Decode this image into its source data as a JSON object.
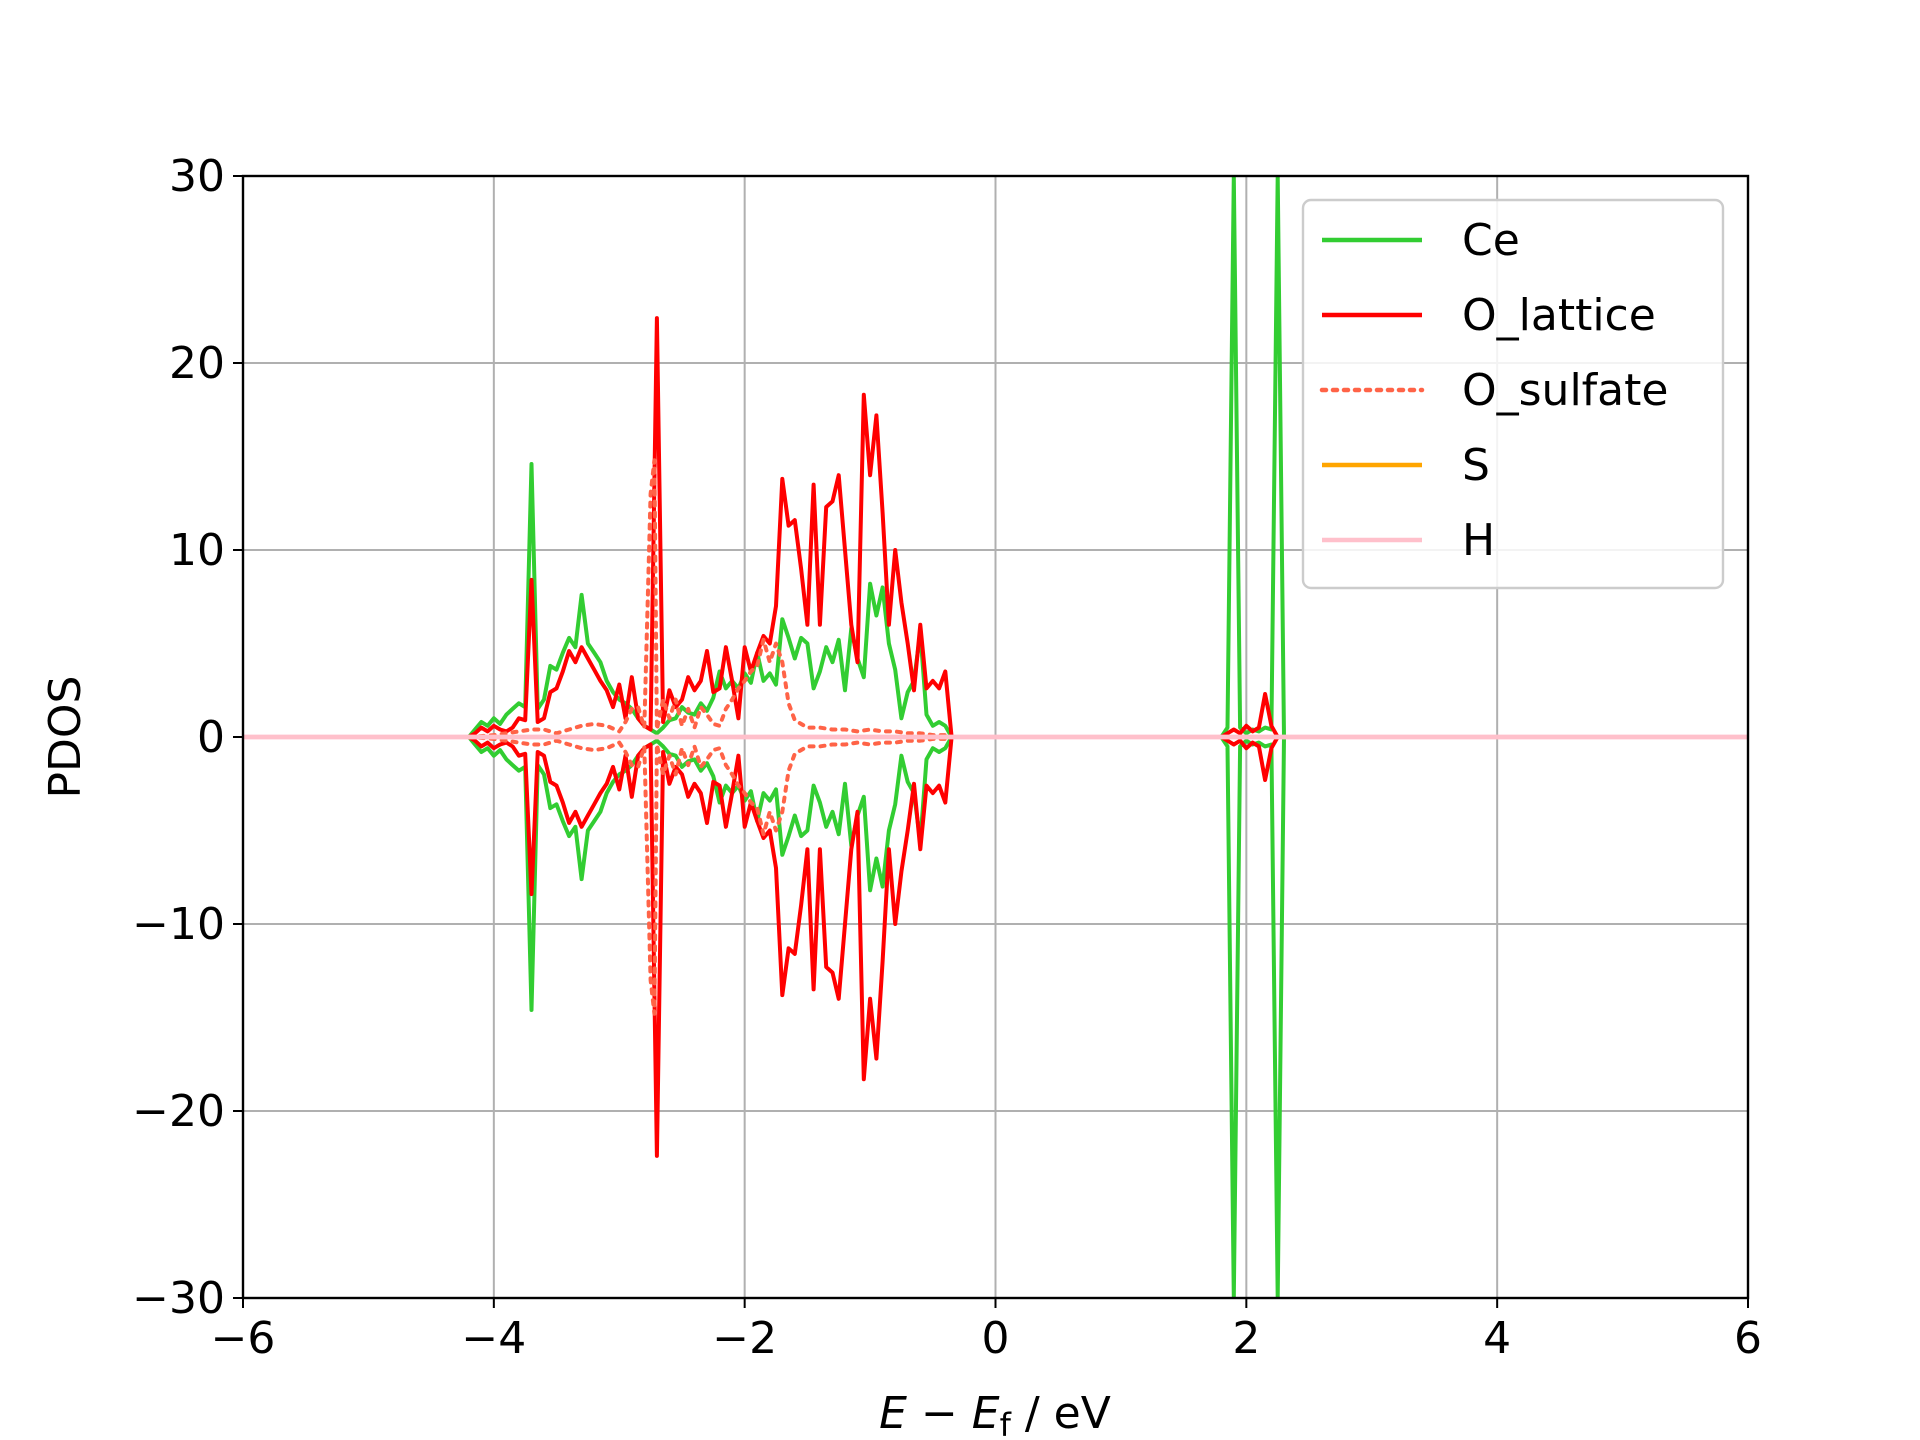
{
  "chart_data": {
    "type": "line",
    "title": "",
    "xlabel_parts": {
      "e": "E",
      "minus": " − ",
      "ef": "E",
      "sub": "f",
      "unit": " / eV"
    },
    "ylabel": "PDOS",
    "xlim": [
      -6,
      6
    ],
    "ylim": [
      -30,
      30
    ],
    "xticks": [
      -6,
      -4,
      -2,
      0,
      2,
      4,
      6
    ],
    "xtick_labels": [
      "−6",
      "−4",
      "−2",
      "0",
      "2",
      "4",
      "6"
    ],
    "yticks": [
      -30,
      -20,
      -10,
      0,
      10,
      20,
      30
    ],
    "ytick_labels": [
      "−30",
      "−20",
      "−10",
      "0",
      "10",
      "20",
      "30"
    ],
    "grid": true,
    "legend_position": "top-right",
    "spin_mirrored": true,
    "series": [
      {
        "name": "Ce",
        "color": "#32cd32",
        "dash": "solid",
        "x": [
          -4.2,
          -4.15,
          -4.1,
          -4.05,
          -4.0,
          -3.95,
          -3.9,
          -3.85,
          -3.8,
          -3.75,
          -3.7,
          -3.65,
          -3.6,
          -3.55,
          -3.5,
          -3.45,
          -3.4,
          -3.35,
          -3.3,
          -3.25,
          -3.2,
          -3.15,
          -3.1,
          -3.05,
          -3.0,
          -2.95,
          -2.9,
          -2.85,
          -2.8,
          -2.75,
          -2.7,
          -2.65,
          -2.6,
          -2.55,
          -2.5,
          -2.45,
          -2.4,
          -2.35,
          -2.3,
          -2.25,
          -2.2,
          -2.15,
          -2.1,
          -2.05,
          -2.0,
          -1.95,
          -1.9,
          -1.85,
          -1.8,
          -1.75,
          -1.7,
          -1.65,
          -1.6,
          -1.55,
          -1.5,
          -1.45,
          -1.4,
          -1.35,
          -1.3,
          -1.25,
          -1.2,
          -1.15,
          -1.1,
          -1.05,
          -1.0,
          -0.95,
          -0.9,
          -0.85,
          -0.8,
          -0.75,
          -0.7,
          -0.65,
          -0.6,
          -0.55,
          -0.5,
          -0.45,
          -0.4,
          -0.35,
          1.8,
          1.85,
          1.9,
          1.95,
          2.0,
          2.05,
          2.1,
          2.15,
          2.2,
          2.25,
          2.3
        ],
        "y": [
          0,
          0.4,
          0.8,
          0.6,
          1.0,
          0.7,
          1.2,
          1.5,
          1.8,
          1.6,
          14.6,
          1.5,
          2.0,
          3.8,
          3.6,
          4.5,
          5.3,
          4.8,
          7.6,
          5.0,
          4.5,
          4.0,
          3.0,
          2.4,
          2.0,
          1.8,
          1.5,
          1.0,
          0.6,
          0.4,
          0.2,
          0.5,
          0.9,
          1.0,
          1.6,
          1.3,
          1.2,
          1.8,
          1.4,
          2.1,
          3.5,
          2.6,
          3.0,
          2.6,
          3.4,
          2.9,
          4.5,
          3.0,
          3.4,
          2.8,
          6.3,
          5.3,
          4.2,
          5.3,
          5.0,
          2.6,
          3.5,
          4.8,
          4.0,
          5.2,
          2.5,
          5.8,
          4.2,
          3.2,
          8.2,
          6.5,
          8.0,
          5.0,
          3.6,
          1.0,
          2.4,
          3.0,
          5.6,
          1.2,
          0.6,
          0.8,
          0.6,
          0,
          0,
          0.5,
          30,
          0.5,
          0.2,
          0.4,
          0.3,
          0.5,
          0.4,
          30,
          0
        ]
      },
      {
        "name": "O_lattice",
        "color": "#ff0000",
        "dash": "solid",
        "x": [
          -4.2,
          -4.15,
          -4.1,
          -4.05,
          -4.0,
          -3.95,
          -3.9,
          -3.85,
          -3.8,
          -3.75,
          -3.7,
          -3.65,
          -3.6,
          -3.55,
          -3.5,
          -3.45,
          -3.4,
          -3.35,
          -3.3,
          -3.25,
          -3.2,
          -3.15,
          -3.1,
          -3.05,
          -3.0,
          -2.95,
          -2.9,
          -2.85,
          -2.8,
          -2.75,
          -2.7,
          -2.65,
          -2.6,
          -2.55,
          -2.5,
          -2.45,
          -2.4,
          -2.35,
          -2.3,
          -2.25,
          -2.2,
          -2.15,
          -2.1,
          -2.05,
          -2.0,
          -1.95,
          -1.9,
          -1.85,
          -1.8,
          -1.75,
          -1.7,
          -1.65,
          -1.6,
          -1.55,
          -1.5,
          -1.45,
          -1.4,
          -1.35,
          -1.3,
          -1.25,
          -1.2,
          -1.15,
          -1.1,
          -1.05,
          -1.0,
          -0.95,
          -0.9,
          -0.85,
          -0.8,
          -0.75,
          -0.7,
          -0.65,
          -0.6,
          -0.55,
          -0.5,
          -0.45,
          -0.4,
          -0.35,
          1.8,
          1.85,
          1.9,
          1.95,
          2.0,
          2.05,
          2.1,
          2.15,
          2.2,
          2.25
        ],
        "y": [
          0,
          0.2,
          0.5,
          0.3,
          0.6,
          0.4,
          0.3,
          0.5,
          1.0,
          0.9,
          8.4,
          0.8,
          1.0,
          2.4,
          2.6,
          3.5,
          4.6,
          4.0,
          4.8,
          4.2,
          3.6,
          3.0,
          2.5,
          1.6,
          2.8,
          1.0,
          3.2,
          1.0,
          0.6,
          0.4,
          22.4,
          0.8,
          2.5,
          1.6,
          2.0,
          3.2,
          2.5,
          3.0,
          4.6,
          2.4,
          2.6,
          4.8,
          3.0,
          1.0,
          4.8,
          3.5,
          4.5,
          5.4,
          5.0,
          7.0,
          13.8,
          11.3,
          11.6,
          9.0,
          6.0,
          13.5,
          6.0,
          12.3,
          12.6,
          14.0,
          10.0,
          6.0,
          4.0,
          18.3,
          14.0,
          17.2,
          12.0,
          6.0,
          10.0,
          7.2,
          5.0,
          2.5,
          6.0,
          2.6,
          3.0,
          2.6,
          3.5,
          0,
          0,
          0.2,
          0.4,
          0.2,
          0.6,
          0.3,
          0.5,
          2.3,
          0.6,
          0
        ]
      },
      {
        "name": "O_sulfate",
        "color": "#ff6347",
        "dash": "dotted",
        "x": [
          -4.2,
          -4.1,
          -4.0,
          -3.9,
          -3.8,
          -3.7,
          -3.6,
          -3.5,
          -3.4,
          -3.3,
          -3.2,
          -3.1,
          -3.0,
          -2.95,
          -2.9,
          -2.85,
          -2.8,
          -2.75,
          -2.72,
          -2.7,
          -2.65,
          -2.6,
          -2.55,
          -2.5,
          -2.45,
          -2.4,
          -2.35,
          -2.3,
          -2.25,
          -2.2,
          -2.15,
          -2.1,
          -2.05,
          -2.0,
          -1.95,
          -1.9,
          -1.85,
          -1.8,
          -1.75,
          -1.7,
          -1.65,
          -1.6,
          -1.5,
          -1.4,
          -1.3,
          -1.2,
          -1.1,
          -1.0,
          -0.9,
          -0.8,
          -0.7,
          -0.6,
          -0.5,
          -0.4,
          -0.35
        ],
        "y": [
          0,
          0.05,
          0.1,
          0.2,
          0.3,
          0.4,
          0.4,
          0.2,
          0.4,
          0.6,
          0.7,
          0.6,
          0.3,
          0.8,
          1.5,
          1.6,
          0.5,
          13.0,
          14.8,
          0.4,
          2.0,
          1.0,
          2.0,
          0.6,
          1.5,
          0.5,
          1.6,
          1.2,
          0.7,
          0.6,
          1.5,
          2.0,
          2.6,
          3.0,
          3.5,
          3.8,
          5.2,
          4.0,
          5.0,
          4.0,
          1.8,
          0.9,
          0.5,
          0.5,
          0.4,
          0.4,
          0.3,
          0.4,
          0.3,
          0.3,
          0.2,
          0.2,
          0.1,
          0.1,
          0
        ]
      },
      {
        "name": "S",
        "color": "#ffa500",
        "dash": "solid",
        "x": [
          -6,
          6
        ],
        "y": [
          0,
          0
        ]
      },
      {
        "name": "H",
        "color": "#ffc0cb",
        "dash": "solid",
        "x": [
          -6,
          6
        ],
        "y": [
          0,
          0
        ]
      }
    ]
  }
}
